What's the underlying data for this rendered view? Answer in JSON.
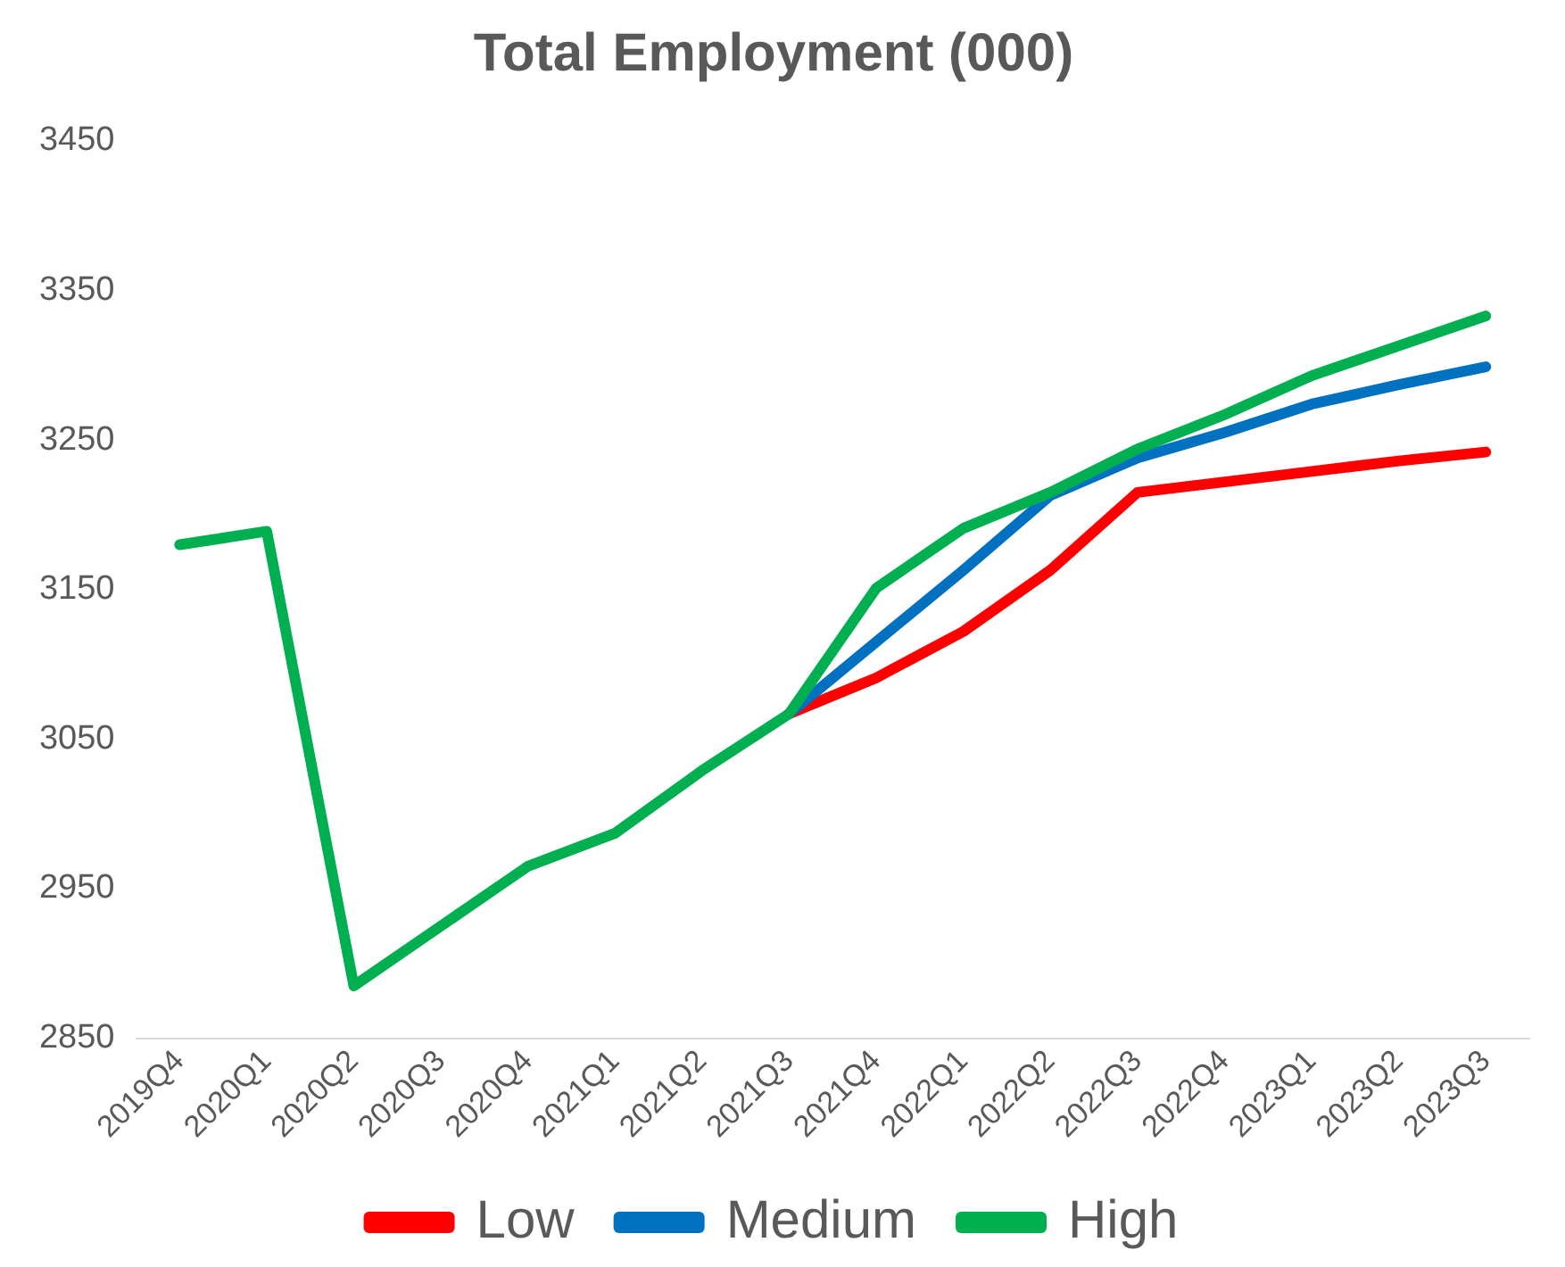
{
  "chart_data": {
    "type": "line",
    "title": "Total Employment (000)",
    "categories": [
      "2019Q4",
      "2020Q1",
      "2020Q2",
      "2020Q3",
      "2020Q4",
      "2021Q1",
      "2021Q2",
      "2021Q3",
      "2021Q4",
      "2022Q1",
      "2022Q2",
      "2022Q3",
      "2022Q4",
      "2023Q1",
      "2023Q2",
      "2023Q3"
    ],
    "series": [
      {
        "name": "Low",
        "color": "#ff0000",
        "values": [
          null,
          null,
          null,
          null,
          null,
          null,
          null,
          3067,
          3091,
          3122,
          3163,
          3215,
          3222,
          3229,
          3236,
          3242
        ]
      },
      {
        "name": "Medium",
        "color": "#0070c0",
        "values": [
          null,
          null,
          null,
          null,
          null,
          null,
          null,
          3067,
          3115,
          3163,
          3213,
          3238,
          3255,
          3274,
          3287,
          3299
        ]
      },
      {
        "name": "High",
        "color": "#00b050",
        "values": [
          3180,
          3189,
          2885,
          2925,
          2965,
          2987,
          3029,
          3067,
          3151,
          3191,
          3215,
          3244,
          3267,
          3293,
          3313,
          3333
        ]
      }
    ],
    "ylim": [
      2850,
      3450
    ],
    "yticks": [
      2850,
      2950,
      3050,
      3150,
      3250,
      3350,
      3450
    ],
    "grid": false,
    "legend": "bottom",
    "marker": "none",
    "line_style": "solid"
  }
}
